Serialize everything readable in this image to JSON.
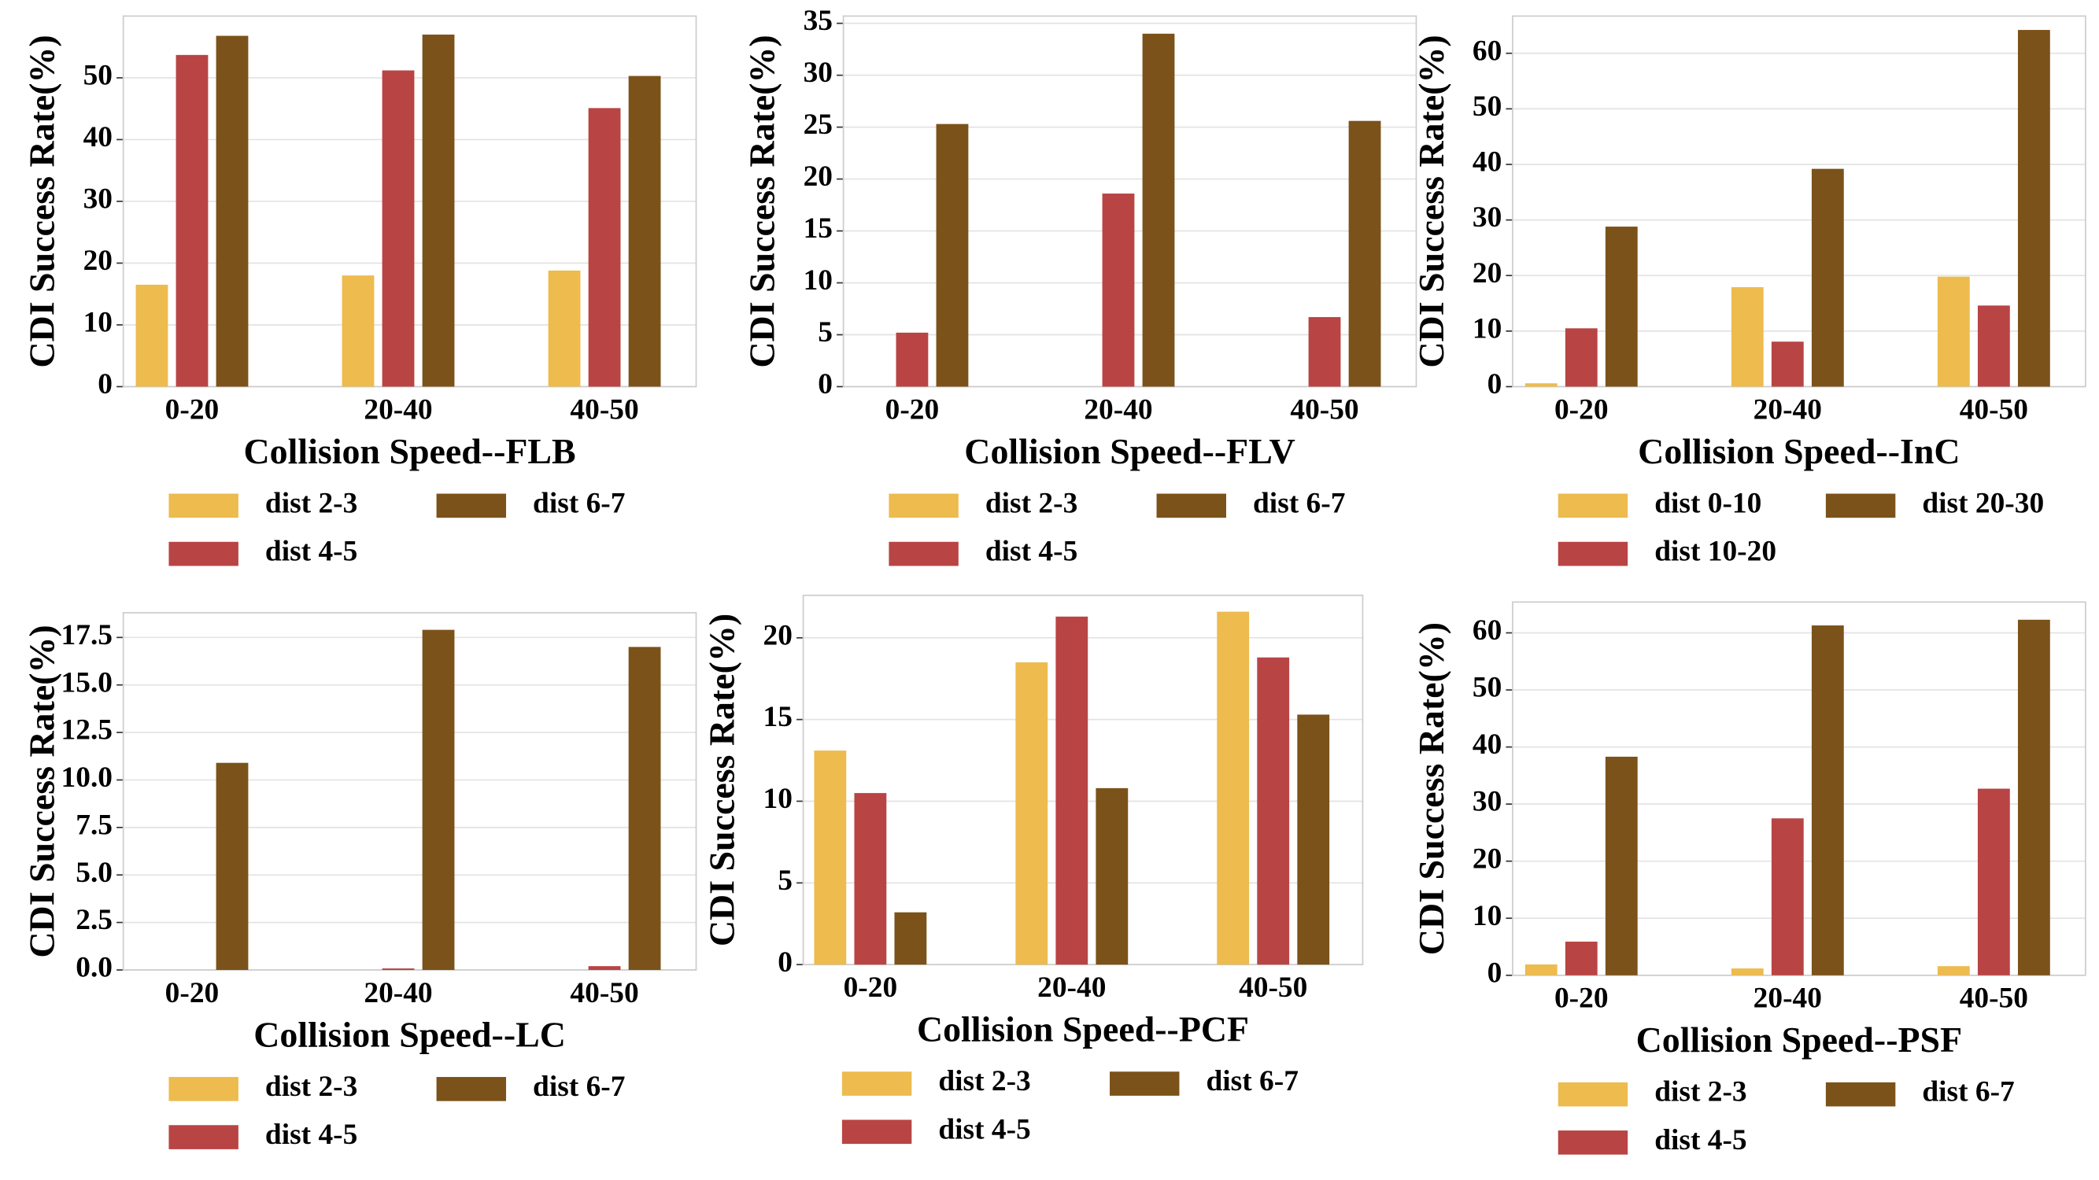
{
  "chart_data": [
    {
      "type": "bar",
      "xlabel": "Collision Speed--FLB",
      "ylabel": "CDI Success Rate(%)",
      "categories": [
        "0-20",
        "20-40",
        "40-50"
      ],
      "series": [
        {
          "name": "dist 2-3",
          "color": "#edbb4e",
          "values": [
            16.5,
            18,
            18.8
          ]
        },
        {
          "name": "dist 4-5",
          "color": "#b94444",
          "values": [
            53.7,
            51.2,
            45.1
          ]
        },
        {
          "name": "dist 6-7",
          "color": "#7b521a",
          "values": [
            56.8,
            57,
            50.3
          ]
        }
      ],
      "ylim": [
        0,
        60
      ],
      "yticks": [
        0,
        10,
        20,
        30,
        40,
        50
      ],
      "grid": true
    },
    {
      "type": "bar",
      "xlabel": "Collision Speed--FLV",
      "ylabel": "CDI Success Rate(%)",
      "categories": [
        "0-20",
        "20-40",
        "40-50"
      ],
      "series": [
        {
          "name": "dist 2-3",
          "color": "#edbb4e",
          "values": [
            0,
            0,
            0
          ]
        },
        {
          "name": "dist 4-5",
          "color": "#b94444",
          "values": [
            5.2,
            18.6,
            6.7
          ]
        },
        {
          "name": "dist 6-7",
          "color": "#7b521a",
          "values": [
            25.3,
            34,
            25.6
          ]
        }
      ],
      "ylim": [
        0,
        35.7
      ],
      "yticks": [
        0,
        5,
        10,
        15,
        20,
        25,
        30,
        35
      ],
      "grid": true
    },
    {
      "type": "bar",
      "xlabel": "Collision Speed--InC",
      "ylabel": "CDI Success Rate(%)",
      "categories": [
        "0-20",
        "20-40",
        "40-50"
      ],
      "series": [
        {
          "name": "dist 0-10",
          "color": "#edbb4e",
          "values": [
            0.6,
            17.9,
            19.8
          ]
        },
        {
          "name": "dist 10-20",
          "color": "#b94444",
          "values": [
            10.5,
            8.1,
            14.6
          ]
        },
        {
          "name": "dist 20-30",
          "color": "#7b521a",
          "values": [
            28.8,
            39.2,
            64.2
          ]
        }
      ],
      "ylim": [
        0,
        66.7
      ],
      "yticks": [
        0,
        10,
        20,
        30,
        40,
        50,
        60
      ],
      "grid": true
    },
    {
      "type": "bar",
      "xlabel": "Collision Speed--LC",
      "ylabel": "CDI Success Rate(%)",
      "categories": [
        "0-20",
        "20-40",
        "40-50"
      ],
      "series": [
        {
          "name": "dist 2-3",
          "color": "#edbb4e",
          "values": [
            0,
            0,
            0
          ]
        },
        {
          "name": "dist 4-5",
          "color": "#b94444",
          "values": [
            0,
            0.08,
            0.2
          ]
        },
        {
          "name": "dist 6-7",
          "color": "#7b521a",
          "values": [
            10.9,
            17.9,
            17.0
          ]
        }
      ],
      "ylim": [
        0,
        18.8
      ],
      "yticks": [
        {
          "value": 0,
          "label": "0.0"
        },
        {
          "value": 2.5,
          "label": "2.5"
        },
        {
          "value": 5,
          "label": "5.0"
        },
        {
          "value": 7.5,
          "label": "7.5"
        },
        {
          "value": 10,
          "label": "10.0"
        },
        {
          "value": 12.5,
          "label": "12.5"
        },
        {
          "value": 15,
          "label": "15.0"
        },
        {
          "value": 17.5,
          "label": "17.5"
        }
      ],
      "grid": true
    },
    {
      "type": "bar",
      "xlabel": "Collision Speed--PCF",
      "ylabel": "CDI Success Rate(%)",
      "categories": [
        "0-20",
        "20-40",
        "40-50"
      ],
      "series": [
        {
          "name": "dist 2-3",
          "color": "#edbb4e",
          "values": [
            13.1,
            18.5,
            21.6
          ]
        },
        {
          "name": "dist 4-5",
          "color": "#b94444",
          "values": [
            10.5,
            21.3,
            18.8
          ]
        },
        {
          "name": "dist 6-7",
          "color": "#7b521a",
          "values": [
            3.2,
            10.8,
            15.3
          ]
        }
      ],
      "ylim": [
        0,
        22.6
      ],
      "yticks": [
        0,
        5,
        10,
        15,
        20
      ],
      "grid": true
    },
    {
      "type": "bar",
      "xlabel": "Collision Speed--PSF",
      "ylabel": "CDI Success Rate(%)",
      "categories": [
        "0-20",
        "20-40",
        "40-50"
      ],
      "series": [
        {
          "name": "dist 2-3",
          "color": "#edbb4e",
          "values": [
            1.9,
            1.2,
            1.6
          ]
        },
        {
          "name": "dist 4-5",
          "color": "#b94444",
          "values": [
            5.9,
            27.5,
            32.7
          ]
        },
        {
          "name": "dist 6-7",
          "color": "#7b521a",
          "values": [
            38.3,
            61.3,
            62.3
          ]
        }
      ],
      "ylim": [
        0,
        65.4
      ],
      "yticks": [
        0,
        10,
        20,
        30,
        40,
        50,
        60
      ],
      "grid": true
    }
  ]
}
